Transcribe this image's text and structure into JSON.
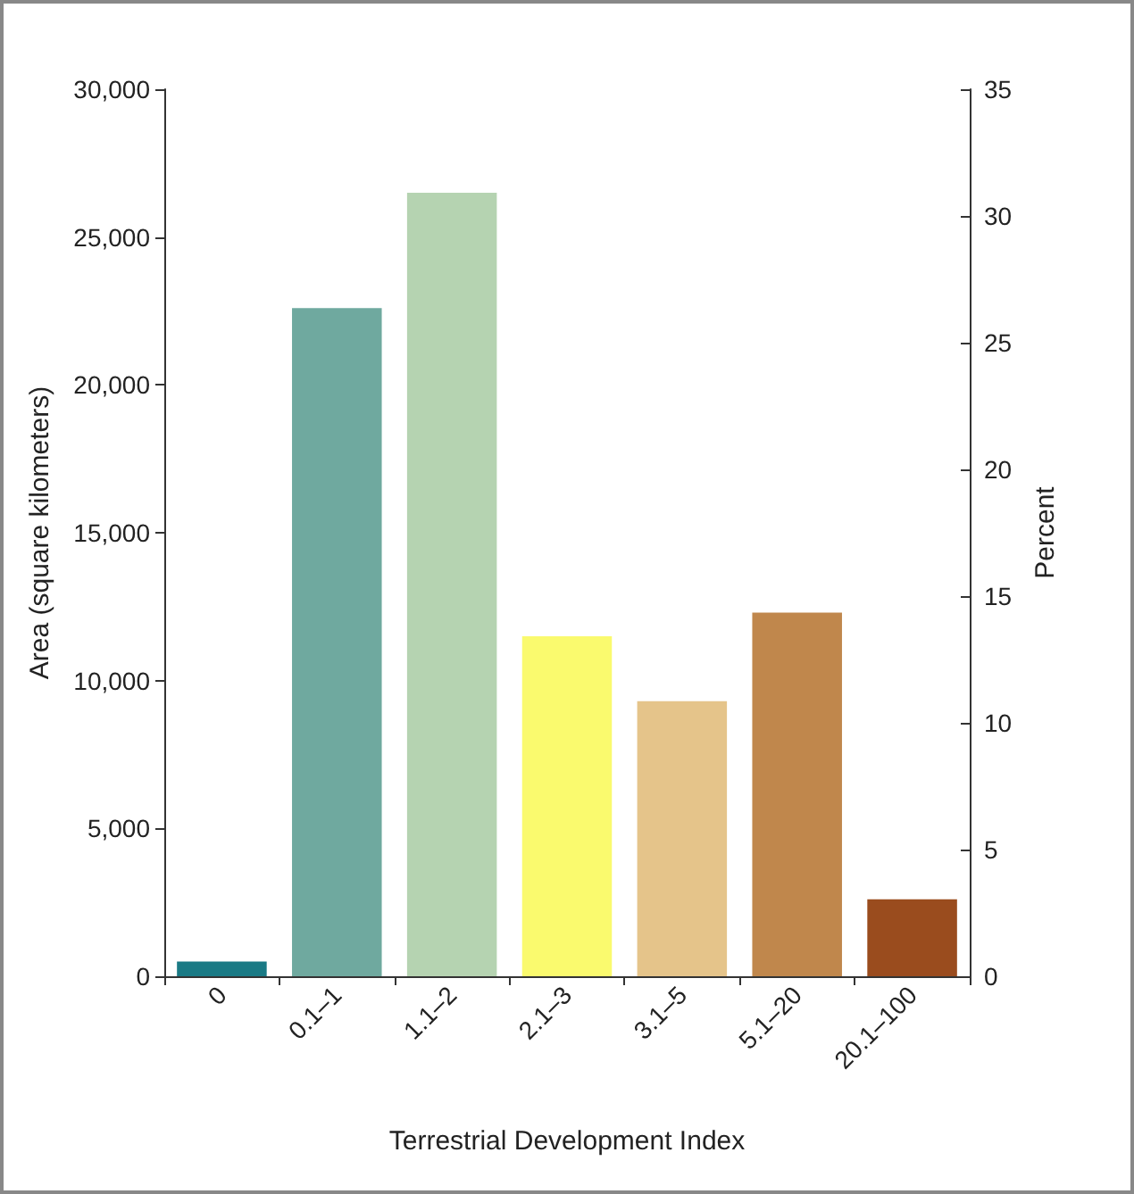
{
  "chart_data": {
    "type": "bar",
    "xlabel": "Terrestrial Development Index",
    "ylabel": "Area (square kilometers)",
    "y2label": "Percent",
    "categories": [
      "0",
      "0.1–1",
      "1.1–2",
      "2.1–3",
      "3.1–5",
      "5.1–20",
      "20.1–100"
    ],
    "values": [
      500,
      22600,
      26500,
      11500,
      9300,
      12300,
      2600
    ],
    "colors": [
      "#1a7a85",
      "#6fa99f",
      "#b5d3b1",
      "#fafa6e",
      "#e5c48a",
      "#c0874c",
      "#9a4c1e"
    ],
    "ylim": [
      0,
      30000
    ],
    "yticks": [
      0,
      {
        "value": 5000,
        "label": "5,000"
      },
      {
        "value": 10000,
        "label": "10,000"
      },
      {
        "value": 15000,
        "label": "15,000"
      },
      {
        "value": 20000,
        "label": "20,000"
      },
      {
        "value": 25000,
        "label": "25,000"
      },
      {
        "value": 30000,
        "label": "30,000"
      }
    ],
    "y2lim": [
      0,
      35
    ],
    "y2ticks": [
      0,
      5,
      10,
      15,
      20,
      25,
      30,
      35
    ],
    "grid": false
  }
}
